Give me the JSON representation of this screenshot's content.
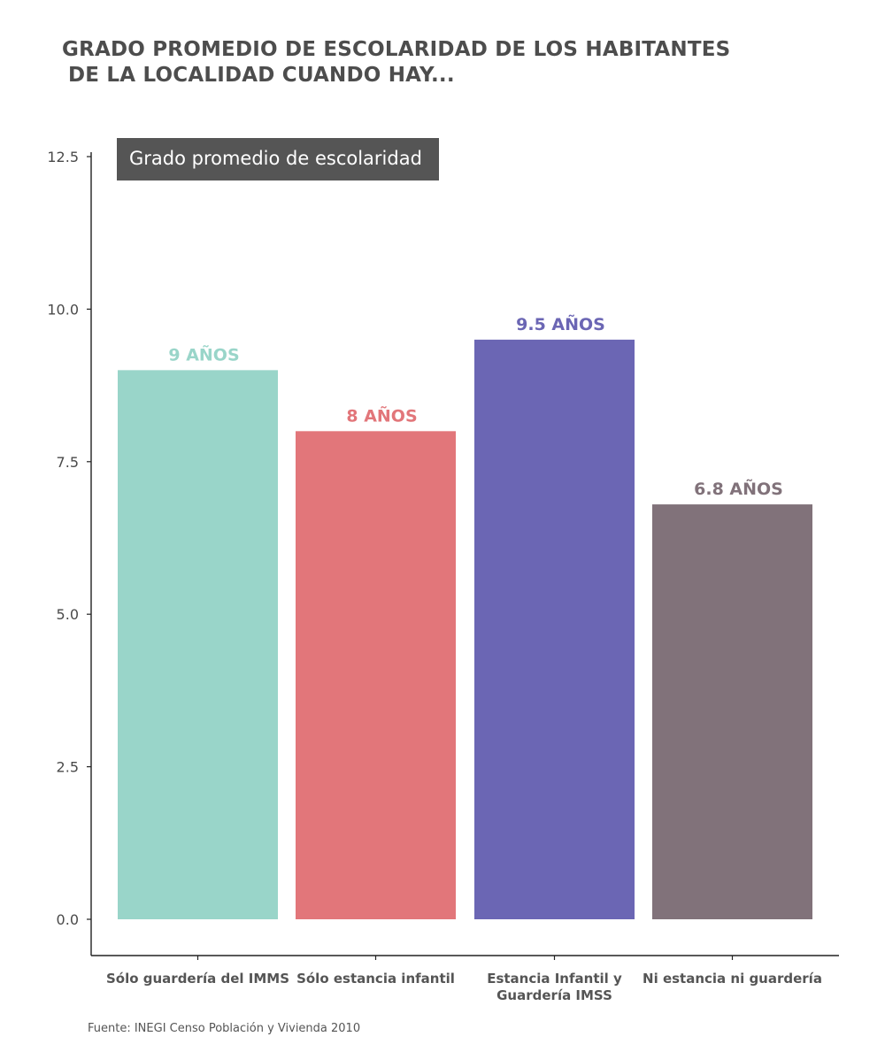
{
  "title_lines": [
    "GRADO PROMEDIO DE ESCOLARIDAD DE LOS HABITANTES",
    "DE LA LOCALIDAD CUANDO HAY..."
  ],
  "source": "Fuente: INEGI Censo Población y Vivienda 2010",
  "chart_data": {
    "type": "bar",
    "categories": [
      [
        "Sólo guardería del IMMS"
      ],
      [
        "Sólo estancia infantil"
      ],
      [
        "Estancia Infantil y",
        "Guardería IMSS"
      ],
      [
        "Ni estancia ni guardería"
      ]
    ],
    "series": [
      {
        "name": "Grado promedio de escolaridad",
        "values": [
          9,
          8,
          9.5,
          6.8
        ]
      }
    ],
    "data_labels": [
      "9 AÑOS",
      "8 AÑOS",
      "9.5 AÑOS",
      "6.8 AÑOS"
    ],
    "colors": [
      "#99d5c9",
      "#e2767a",
      "#6b66b4",
      "#81727a"
    ],
    "yticks": [
      "0.0",
      "2.5",
      "5.0",
      "7.5",
      "10.0",
      "12.5"
    ],
    "ytick_values": [
      0,
      2.5,
      5,
      7.5,
      10,
      12.5
    ],
    "ylim": [
      -0.6,
      12.5
    ],
    "legend": {
      "label": "Grado promedio de escolaridad",
      "position": "top-left",
      "color": "#555555"
    },
    "grid": false
  }
}
